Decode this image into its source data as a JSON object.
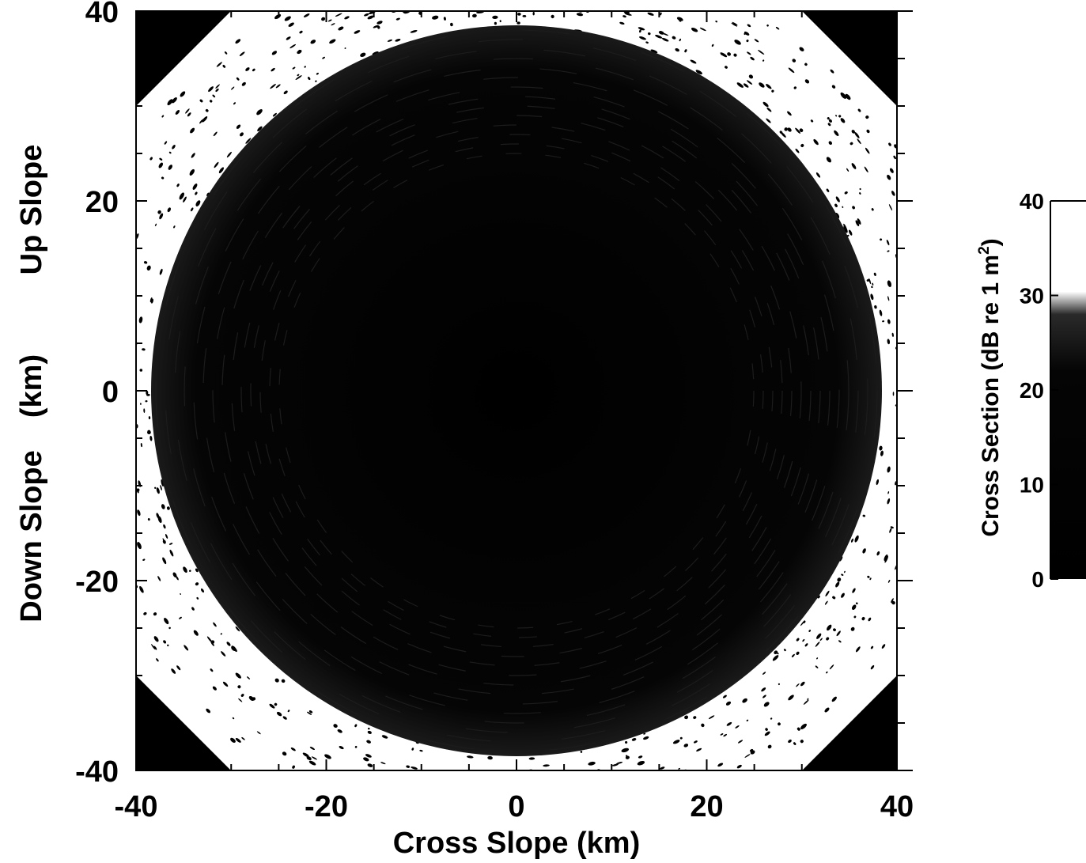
{
  "chart_data": {
    "type": "heatmap",
    "description_free": true,
    "x": {
      "label": "Cross Slope  (km)",
      "range": [
        -40,
        40
      ],
      "ticks": [
        -40,
        -20,
        0,
        20,
        40
      ],
      "tick_labels": [
        "-40",
        "-20",
        "0",
        "20",
        "40"
      ]
    },
    "y": {
      "label_top": "Up Slope",
      "label_mid": "(km)",
      "label_bottom": "Down Slope",
      "range": [
        -40,
        40
      ],
      "ticks": [
        40,
        20,
        0,
        -20,
        -40
      ],
      "tick_labels": [
        "40",
        "20",
        "0",
        "-20",
        "-40"
      ]
    },
    "colorbar": {
      "label": "Cross Section  (dB re 1 m",
      "label_sup": "2",
      "label_end": ")",
      "range": [
        0,
        40
      ],
      "ticks": [
        40,
        30,
        20,
        10,
        0
      ],
      "tick_labels": [
        "40",
        "30",
        "20",
        "10",
        "0"
      ]
    },
    "coverage_radius_km": 40,
    "colors": {
      "high": "#ffffff",
      "low": "#000000"
    }
  }
}
